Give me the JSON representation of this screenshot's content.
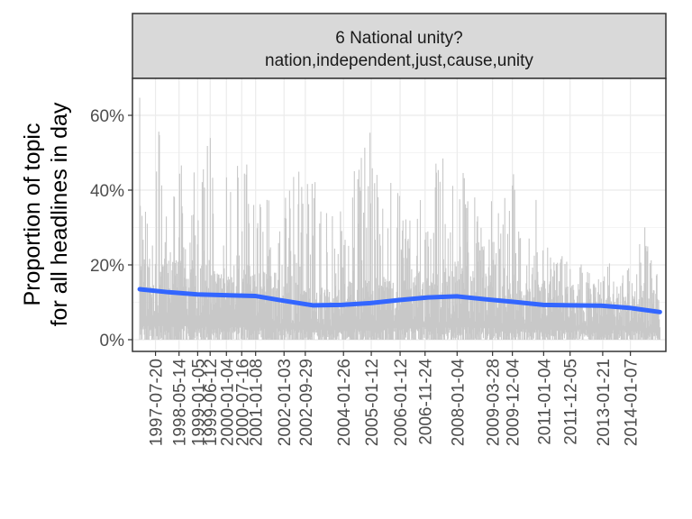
{
  "chart_data": {
    "type": "line",
    "strip": {
      "title": "6 National unity?",
      "subtitle": "nation,independent,just,cause,unity"
    },
    "ylabel_line1": "Proportion of topic",
    "ylabel_line2": "for all headlines in day",
    "xlabel": "",
    "ylim": [
      0,
      0.7
    ],
    "y_ticks": [
      0,
      0.2,
      0.4,
      0.6
    ],
    "y_tick_labels": [
      "0%",
      "20%",
      "40%",
      "60%"
    ],
    "x_range": [
      "1996-10-01",
      "2015-04-01"
    ],
    "x_ticks": [
      {
        "date": "1997-07-20",
        "label": "1997-07-20"
      },
      {
        "date": "1998-05-14",
        "label": "1998-05-14"
      },
      {
        "date": "1999-01-05",
        "label": "1999-01-05"
      },
      {
        "date": "1999-06-12",
        "label": "1999-06-12"
      },
      {
        "date": "2000-01-04",
        "label": "2000-01-04"
      },
      {
        "date": "2000-07-16",
        "label": "2000-07-16"
      },
      {
        "date": "2001-01-08",
        "label": "2001-01-08"
      },
      {
        "date": "2002-01-03",
        "label": "2002-01-03"
      },
      {
        "date": "2002-09-29",
        "label": "2002-09-29"
      },
      {
        "date": "2004-01-26",
        "label": "2004-01-26"
      },
      {
        "date": "2005-01-12",
        "label": "2005-01-12"
      },
      {
        "date": "2006-01-12",
        "label": "2006-01-12"
      },
      {
        "date": "2006-11-24",
        "label": "2006-11-24"
      },
      {
        "date": "2008-01-04",
        "label": "2008-01-04"
      },
      {
        "date": "2009-03-28",
        "label": "2009-03-28"
      },
      {
        "date": "2009-12-04",
        "label": "2009-12-04"
      },
      {
        "date": "2011-01-04",
        "label": "2011-01-04"
      },
      {
        "date": "2011-12-05",
        "label": "2011-12-05"
      },
      {
        "date": "2013-01-21",
        "label": "2013-01-21"
      },
      {
        "date": "2014-01-07",
        "label": "2014-01-07"
      }
    ],
    "series": [
      {
        "role": "daily proportion (raw)",
        "color": "#c8c8c8",
        "x_start": "1997-01-01",
        "x_end": "2015-01-15",
        "spike_envelope": [
          {
            "x": "1997-01-01",
            "y": 0.66
          },
          {
            "x": "1997-06-01",
            "y": 0.34
          },
          {
            "x": "1997-08-01",
            "y": 0.6
          },
          {
            "x": "1998-01-01",
            "y": 0.44
          },
          {
            "x": "1998-06-01",
            "y": 0.55
          },
          {
            "x": "1999-01-01",
            "y": 0.48
          },
          {
            "x": "1999-06-01",
            "y": 0.57
          },
          {
            "x": "2000-01-01",
            "y": 0.45
          },
          {
            "x": "2000-07-01",
            "y": 0.54
          },
          {
            "x": "2001-01-01",
            "y": 0.61
          },
          {
            "x": "2001-06-01",
            "y": 0.44
          },
          {
            "x": "2002-01-01",
            "y": 0.42
          },
          {
            "x": "2002-09-01",
            "y": 0.47
          },
          {
            "x": "2003-06-01",
            "y": 0.39
          },
          {
            "x": "2004-01-01",
            "y": 0.37
          },
          {
            "x": "2005-01-01",
            "y": 0.56
          },
          {
            "x": "2005-06-01",
            "y": 0.44
          },
          {
            "x": "2006-01-01",
            "y": 0.45
          },
          {
            "x": "2006-06-01",
            "y": 0.53
          },
          {
            "x": "2007-01-01",
            "y": 0.46
          },
          {
            "x": "2007-06-01",
            "y": 0.51
          },
          {
            "x": "2008-01-01",
            "y": 0.48
          },
          {
            "x": "2009-01-01",
            "y": 0.38
          },
          {
            "x": "2009-06-01",
            "y": 0.45
          },
          {
            "x": "2010-03-01",
            "y": 0.46
          },
          {
            "x": "2010-09-01",
            "y": 0.42
          },
          {
            "x": "2011-01-01",
            "y": 0.26
          },
          {
            "x": "2012-01-01",
            "y": 0.21
          },
          {
            "x": "2012-06-01",
            "y": 0.24
          },
          {
            "x": "2013-01-01",
            "y": 0.22
          },
          {
            "x": "2014-01-01",
            "y": 0.24
          },
          {
            "x": "2014-07-01",
            "y": 0.33
          },
          {
            "x": "2015-01-15",
            "y": 0.16
          }
        ]
      },
      {
        "role": "smoothed trend",
        "color": "#3366ff",
        "points": [
          {
            "x": "1997-01-01",
            "y": 0.135
          },
          {
            "x": "1998-01-01",
            "y": 0.127
          },
          {
            "x": "1999-01-01",
            "y": 0.121
          },
          {
            "x": "2000-01-01",
            "y": 0.119
          },
          {
            "x": "2001-01-01",
            "y": 0.117
          },
          {
            "x": "2002-01-01",
            "y": 0.104
          },
          {
            "x": "2003-01-01",
            "y": 0.092
          },
          {
            "x": "2004-01-01",
            "y": 0.093
          },
          {
            "x": "2005-01-01",
            "y": 0.098
          },
          {
            "x": "2006-01-01",
            "y": 0.106
          },
          {
            "x": "2007-01-01",
            "y": 0.113
          },
          {
            "x": "2008-01-01",
            "y": 0.116
          },
          {
            "x": "2009-01-01",
            "y": 0.108
          },
          {
            "x": "2010-01-01",
            "y": 0.101
          },
          {
            "x": "2011-01-01",
            "y": 0.093
          },
          {
            "x": "2012-01-01",
            "y": 0.092
          },
          {
            "x": "2013-01-01",
            "y": 0.091
          },
          {
            "x": "2014-01-01",
            "y": 0.085
          },
          {
            "x": "2015-01-15",
            "y": 0.074
          }
        ]
      }
    ],
    "grid": true,
    "legend": "none"
  }
}
